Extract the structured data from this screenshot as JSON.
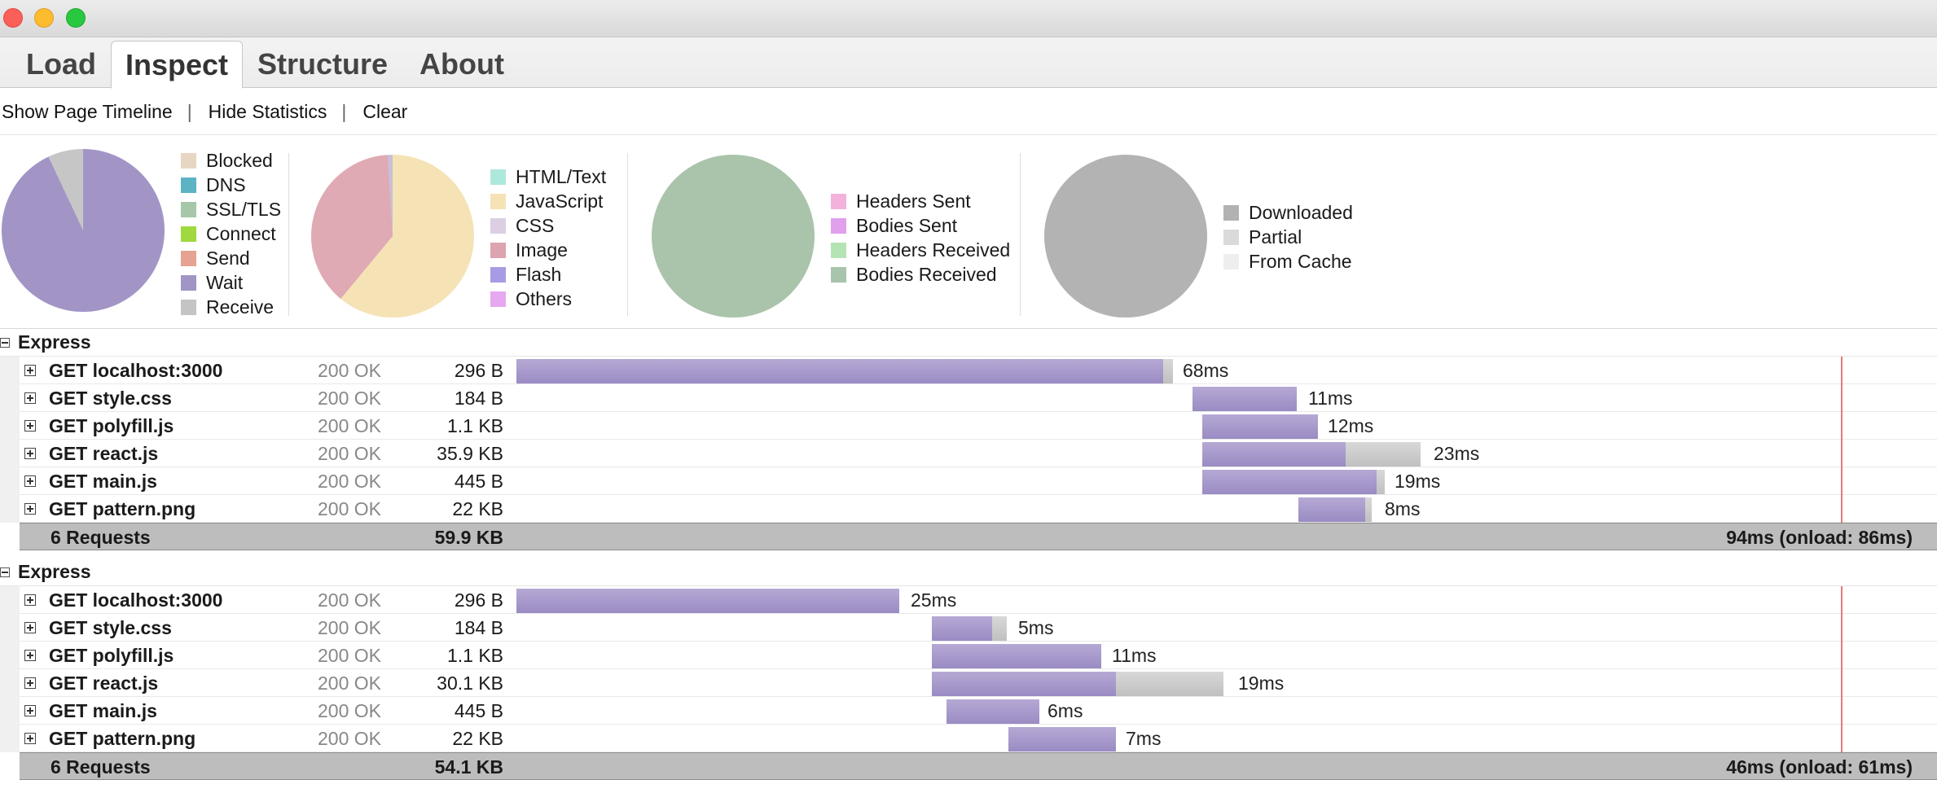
{
  "tabs": [
    {
      "label": "Load"
    },
    {
      "label": "Inspect"
    },
    {
      "label": "Structure"
    },
    {
      "label": "About"
    }
  ],
  "toolbar": {
    "show_timeline": "Show Page Timeline",
    "hide_statistics": "Hide Statistics",
    "clear": "Clear",
    "separator": "|"
  },
  "stats": {
    "timing_legend": [
      {
        "label": "Blocked",
        "color": "#e8d6c4"
      },
      {
        "label": "DNS",
        "color": "#5db3c4"
      },
      {
        "label": "SSL/TLS",
        "color": "#a6c8a8"
      },
      {
        "label": "Connect",
        "color": "#a0d840"
      },
      {
        "label": "Send",
        "color": "#e6a293"
      },
      {
        "label": "Wait",
        "color": "#a195c5"
      },
      {
        "label": "Receive",
        "color": "#c4c4c4"
      }
    ],
    "type_legend": [
      {
        "label": "HTML/Text",
        "color": "#aee8dc"
      },
      {
        "label": "JavaScript",
        "color": "#f5e3b6"
      },
      {
        "label": "CSS",
        "color": "#dccfe3"
      },
      {
        "label": "Image",
        "color": "#dca4ae"
      },
      {
        "label": "Flash",
        "color": "#a79ce4"
      },
      {
        "label": "Others",
        "color": "#e6a8f0"
      }
    ],
    "transfer_legend": [
      {
        "label": "Headers Sent",
        "color": "#f2b2dc"
      },
      {
        "label": "Bodies Sent",
        "color": "#e0a0ec"
      },
      {
        "label": "Headers Received",
        "color": "#b4e4b4"
      },
      {
        "label": "Bodies Received",
        "color": "#a8c4ac"
      }
    ],
    "cache_legend": [
      {
        "label": "Downloaded",
        "color": "#b2b2b2"
      },
      {
        "label": "Partial",
        "color": "#dadada"
      },
      {
        "label": "From Cache",
        "color": "#eeeeee"
      }
    ],
    "pie_colors": {
      "timing_wait": "#a295c6",
      "timing_receive": "#c6c6c6",
      "type_js": "#f5e3b6",
      "type_image": "#dfaab3",
      "type_css": "#c8c0d8",
      "transfer": "#a9c4aa",
      "cache": "#b3b3b3"
    }
  },
  "groups": [
    {
      "title": "Express",
      "requests": [
        {
          "name": "GET localhost:3000",
          "status": "200 OK",
          "size": "296 B",
          "time": "68ms"
        },
        {
          "name": "GET style.css",
          "status": "200 OK",
          "size": "184 B",
          "time": "11ms"
        },
        {
          "name": "GET polyfill.js",
          "status": "200 OK",
          "size": "1.1 KB",
          "time": "12ms"
        },
        {
          "name": "GET react.js",
          "status": "200 OK",
          "size": "35.9 KB",
          "time": "23ms"
        },
        {
          "name": "GET main.js",
          "status": "200 OK",
          "size": "445 B",
          "time": "19ms"
        },
        {
          "name": "GET pattern.png",
          "status": "200 OK",
          "size": "22 KB",
          "time": "8ms"
        }
      ],
      "summary": {
        "count": "6 Requests",
        "total_size": "59.9 KB",
        "time": "94ms (onload: 86ms)"
      }
    },
    {
      "title": "Express",
      "requests": [
        {
          "name": "GET localhost:3000",
          "status": "200 OK",
          "size": "296 B",
          "time": "25ms"
        },
        {
          "name": "GET style.css",
          "status": "200 OK",
          "size": "184 B",
          "time": "5ms"
        },
        {
          "name": "GET polyfill.js",
          "status": "200 OK",
          "size": "1.1 KB",
          "time": "11ms"
        },
        {
          "name": "GET react.js",
          "status": "200 OK",
          "size": "30.1 KB",
          "time": "19ms"
        },
        {
          "name": "GET main.js",
          "status": "200 OK",
          "size": "445 B",
          "time": "6ms"
        },
        {
          "name": "GET pattern.png",
          "status": "200 OK",
          "size": "22 KB",
          "time": "7ms"
        }
      ],
      "summary": {
        "count": "6 Requests",
        "total_size": "54.1 KB",
        "time": "46ms (onload: 61ms)"
      }
    }
  ]
}
